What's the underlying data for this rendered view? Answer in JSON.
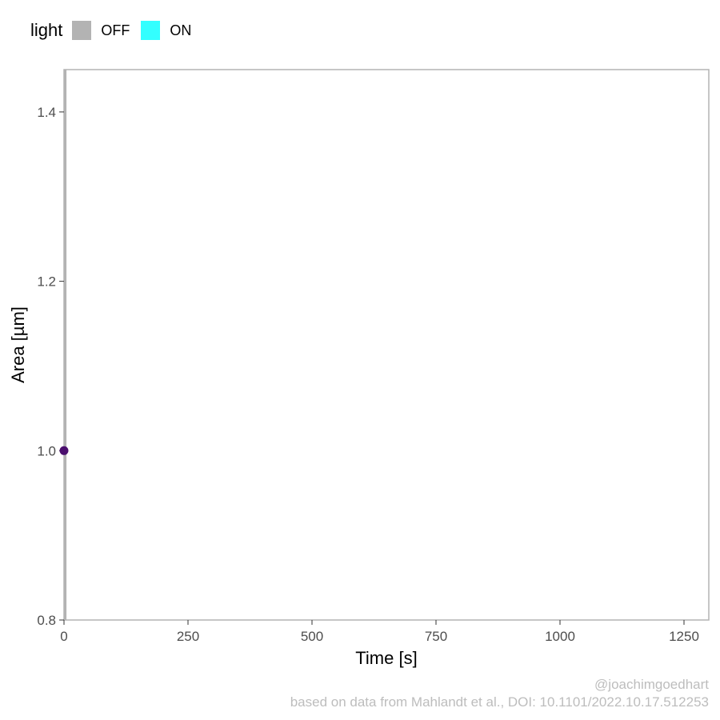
{
  "legend": {
    "title": "light",
    "items": [
      {
        "label": "OFF",
        "color": "#b3b3b3"
      },
      {
        "label": "ON",
        "color": "#33ffff"
      }
    ]
  },
  "captions": {
    "handle": "@joachimgoedhart",
    "source": "based on data from Mahlandt et al., DOI: 10.1101/2022.10.17.512253"
  },
  "chart_data": {
    "type": "line",
    "xlabel": "Time [s]",
    "ylabel": "Area [µm]",
    "xlim": [
      0,
      1300
    ],
    "ylim": [
      0.8,
      1.45
    ],
    "x_ticks": [
      0,
      250,
      500,
      750,
      1000,
      1250
    ],
    "y_ticks": [
      0.8,
      1.0,
      1.2,
      1.4
    ],
    "x_tick_labels": [
      "0",
      "250",
      "500",
      "750",
      "1000",
      "1250"
    ],
    "y_tick_labels": [
      "0.8",
      "1.0",
      "1.2",
      "1.4"
    ],
    "light_periods": [
      {
        "state": "OFF",
        "start": 0,
        "end": 5
      }
    ],
    "series": [
      {
        "x": [
          0
        ],
        "y": [
          1.0
        ],
        "color": "#4b0f6e"
      }
    ],
    "grid": false,
    "legend_position": "top-left"
  }
}
